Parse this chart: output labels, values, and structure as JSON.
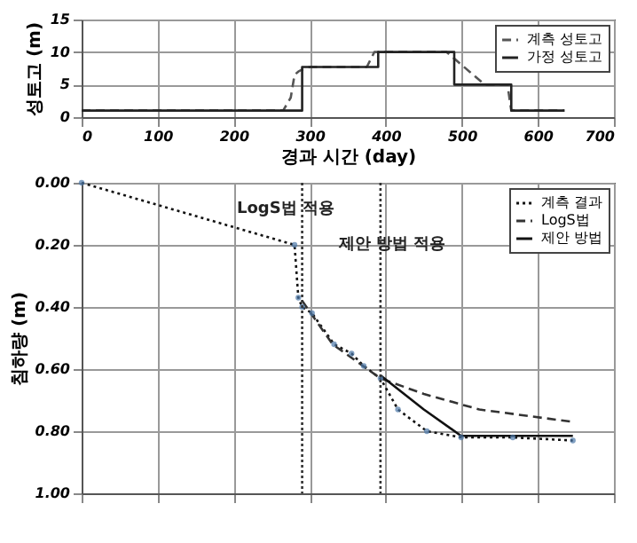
{
  "chart_data": [
    {
      "type": "line",
      "xlabel": "경과 시간 (day)",
      "ylabel": "성토고 (m)",
      "xlim": [
        0,
        700
      ],
      "xticks": [
        0,
        100,
        200,
        300,
        400,
        500,
        600,
        700
      ],
      "ylim": [
        0,
        15
      ],
      "yticks": [
        0,
        5,
        10,
        15
      ],
      "grid": true,
      "legend": "top right",
      "series": [
        {
          "name": "계측 성토고",
          "color": "#555555",
          "line_style": "dashed",
          "x": [
            0,
            265,
            275,
            280,
            285,
            290,
            300,
            375,
            385,
            390,
            480,
            490,
            510,
            530,
            560,
            565,
            635
          ],
          "values": [
            1,
            1,
            3,
            6.5,
            7,
            7.3,
            7.7,
            7.7,
            10,
            10,
            10,
            9,
            7,
            5,
            5,
            1,
            1
          ]
        },
        {
          "name": "가정 성토고",
          "color": "#222222",
          "line_style": "solid",
          "x": [
            0,
            290,
            290,
            390,
            390,
            490,
            490,
            565,
            565,
            635
          ],
          "values": [
            1,
            1,
            7.7,
            7.7,
            10,
            10,
            5,
            5,
            1,
            1
          ]
        }
      ]
    },
    {
      "type": "line",
      "ylabel": "침하량 (m)",
      "xlim": [
        0,
        700
      ],
      "xticks": [
        0,
        100,
        200,
        300,
        400,
        500,
        600,
        700
      ],
      "ylim": [
        1,
        0
      ],
      "yticks": [
        {
          "value": 0,
          "label": "0.00"
        },
        {
          "value": 0.2,
          "label": "0.20"
        },
        {
          "value": 0.4,
          "label": "0.40"
        },
        {
          "value": 0.6,
          "label": "0.60"
        },
        {
          "value": 0.8,
          "label": "0.80"
        },
        {
          "value": 1,
          "label": "1.00"
        }
      ],
      "grid": true,
      "tick_labels": "y",
      "legend": "top right",
      "ref_lines": [
        {
          "axis": "x",
          "value": 290,
          "label": null
        },
        {
          "axis": "x",
          "value": 393,
          "label": null
        }
      ],
      "annotations": [
        "LogS법 적용",
        "제안 방법 적용"
      ],
      "series": [
        {
          "name": "계측 결과",
          "color": "#111111",
          "line_style": "dotted",
          "marker": "circle",
          "x": [
            0,
            280,
            285,
            290,
            303,
            332,
            355,
            371,
            393,
            416,
            454,
            499,
            567,
            646
          ],
          "values": [
            0,
            0.2,
            0.37,
            0.4,
            0.42,
            0.52,
            0.55,
            0.59,
            0.63,
            0.73,
            0.8,
            0.82,
            0.82,
            0.83
          ]
        },
        {
          "name": "LogS법",
          "color": "#333333",
          "line_style": "dashed",
          "x": [
            290,
            330,
            393,
            450,
            523,
            646
          ],
          "values": [
            0.38,
            0.52,
            0.63,
            0.68,
            0.73,
            0.77
          ]
        },
        {
          "name": "제안 방법",
          "color": "#111111",
          "line_style": "solid",
          "x": [
            393,
            450,
            499,
            567,
            646
          ],
          "values": [
            0.62,
            0.73,
            0.815,
            0.815,
            0.815
          ]
        }
      ]
    }
  ]
}
